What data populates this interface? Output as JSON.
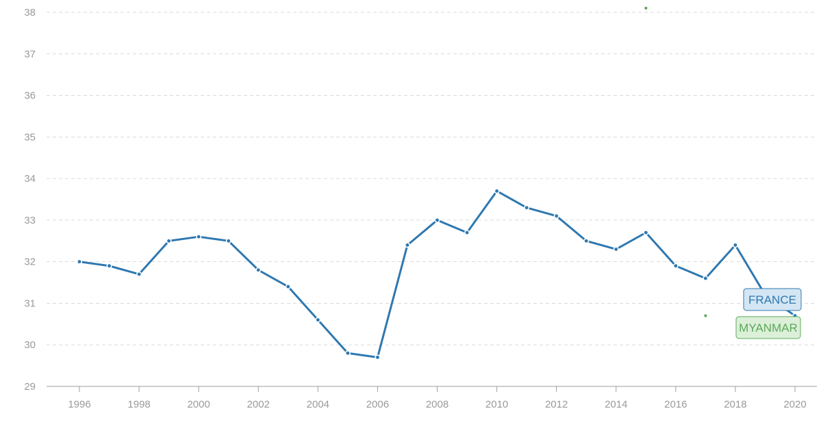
{
  "chart_data": {
    "type": "line",
    "title": "",
    "xlabel": "",
    "ylabel": "",
    "xlim": [
      1995,
      2021
    ],
    "ylim": [
      29,
      38
    ],
    "x_ticks": [
      1996,
      1998,
      2000,
      2002,
      2004,
      2006,
      2008,
      2010,
      2012,
      2014,
      2016,
      2018,
      2020
    ],
    "y_ticks": [
      29,
      30,
      31,
      32,
      33,
      34,
      35,
      36,
      37,
      38
    ],
    "grid": true,
    "series": [
      {
        "name": "FRANCE",
        "color": "#2e78b0",
        "label_fill": "#d4e6f4",
        "points": [
          {
            "x": 1996,
            "y": 32.0
          },
          {
            "x": 1997,
            "y": 31.9
          },
          {
            "x": 1998,
            "y": 31.7
          },
          {
            "x": 1999,
            "y": 32.5
          },
          {
            "x": 2000,
            "y": 32.6
          },
          {
            "x": 2001,
            "y": 32.5
          },
          {
            "x": 2002,
            "y": 31.8
          },
          {
            "x": 2003,
            "y": 31.4
          },
          {
            "x": 2004,
            "y": 30.6
          },
          {
            "x": 2005,
            "y": 29.8
          },
          {
            "x": 2006,
            "y": 29.7
          },
          {
            "x": 2007,
            "y": 32.4
          },
          {
            "x": 2008,
            "y": 33.0
          },
          {
            "x": 2009,
            "y": 32.7
          },
          {
            "x": 2010,
            "y": 33.7
          },
          {
            "x": 2011,
            "y": 33.3
          },
          {
            "x": 2012,
            "y": 33.1
          },
          {
            "x": 2013,
            "y": 32.5
          },
          {
            "x": 2014,
            "y": 32.3
          },
          {
            "x": 2015,
            "y": 32.7
          },
          {
            "x": 2016,
            "y": 31.9
          },
          {
            "x": 2017,
            "y": 31.6
          },
          {
            "x": 2018,
            "y": 32.4
          },
          {
            "x": 2019,
            "y": 31.2
          },
          {
            "x": 2020,
            "y": 30.7
          }
        ]
      },
      {
        "name": "MYANMAR",
        "color": "#5ba85b",
        "label_fill": "#dcefd8",
        "points": [
          {
            "x": 2015,
            "y": 38.1
          },
          {
            "x": 2017,
            "y": 30.7
          }
        ]
      }
    ]
  }
}
